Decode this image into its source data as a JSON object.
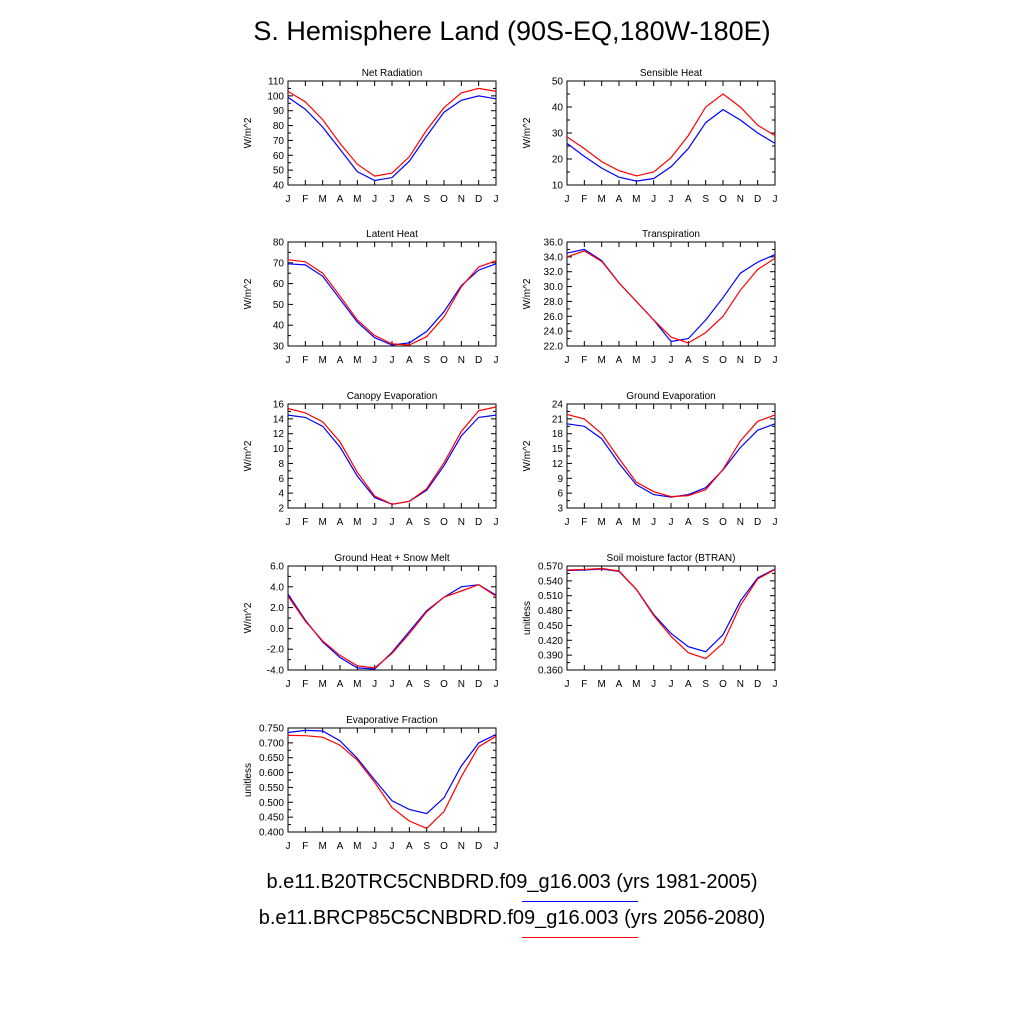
{
  "title": "S. Hemisphere Land (90S-EQ,180W-180E)",
  "legend": {
    "entries": [
      {
        "label": "b.e11.B20TRC5CNBDRD.f09_g16.003 (yrs 1981-2005)",
        "color": "#0000ff"
      },
      {
        "label": "b.e11.BRCP85C5CNBDRD.f09_g16.003 (yrs 2056-2080)",
        "color": "#ff0000"
      }
    ]
  },
  "chart_data": [
    {
      "type": "line",
      "title": "Net Radiation",
      "xlabel": "",
      "ylabel": "W/m^2",
      "categories": [
        "J",
        "F",
        "M",
        "A",
        "M",
        "J",
        "J",
        "A",
        "S",
        "O",
        "N",
        "D",
        "J"
      ],
      "ylim": [
        40,
        110
      ],
      "yticks": [
        "40",
        "50",
        "60",
        "70",
        "80",
        "90",
        "100",
        "110"
      ],
      "series": [
        {
          "color": "#0000ff",
          "values": [
            99,
            91,
            79,
            64,
            49,
            43,
            45,
            56,
            73,
            89,
            97,
            100,
            98
          ]
        },
        {
          "color": "#ff0000",
          "values": [
            103,
            96,
            84,
            68,
            54,
            46,
            48,
            59,
            77,
            92,
            102,
            105,
            103
          ]
        }
      ]
    },
    {
      "type": "line",
      "title": "Sensible Heat",
      "xlabel": "",
      "ylabel": "W/m^2",
      "categories": [
        "J",
        "F",
        "M",
        "A",
        "M",
        "J",
        "J",
        "A",
        "S",
        "O",
        "N",
        "D",
        "J"
      ],
      "ylim": [
        10,
        50
      ],
      "yticks": [
        "10",
        "20",
        "30",
        "40",
        "50"
      ],
      "series": [
        {
          "color": "#0000ff",
          "values": [
            26,
            21,
            16.5,
            13,
            11.5,
            12.5,
            17,
            24,
            34,
            39,
            35,
            30,
            26
          ]
        },
        {
          "color": "#ff0000",
          "values": [
            28.5,
            24,
            19,
            15.5,
            13.5,
            15,
            20.5,
            29,
            40,
            45,
            40,
            33,
            29
          ]
        }
      ]
    },
    {
      "type": "line",
      "title": "Latent Heat",
      "xlabel": "",
      "ylabel": "W/m^2",
      "categories": [
        "J",
        "F",
        "M",
        "A",
        "M",
        "J",
        "J",
        "A",
        "S",
        "O",
        "N",
        "D",
        "J"
      ],
      "ylim": [
        30,
        80
      ],
      "yticks": [
        "30",
        "40",
        "50",
        "60",
        "70",
        "80"
      ],
      "series": [
        {
          "color": "#0000ff",
          "values": [
            69.5,
            69,
            63.5,
            52.5,
            41.5,
            34,
            30.5,
            31.5,
            37,
            46.5,
            59,
            66.5,
            69.5
          ]
        },
        {
          "color": "#ff0000",
          "values": [
            71.5,
            70.5,
            65,
            54,
            42.5,
            35,
            31,
            30.5,
            34.5,
            44,
            58.5,
            68,
            71
          ]
        }
      ]
    },
    {
      "type": "line",
      "title": "Transpiration",
      "xlabel": "",
      "ylabel": "W/m^2",
      "categories": [
        "J",
        "F",
        "M",
        "A",
        "M",
        "J",
        "J",
        "A",
        "S",
        "O",
        "N",
        "D",
        "J"
      ],
      "ylim": [
        22,
        36
      ],
      "yticks": [
        "22.0",
        "24.0",
        "26.0",
        "28.0",
        "30.0",
        "32.0",
        "34.0",
        "36.0"
      ],
      "series": [
        {
          "color": "#0000ff",
          "values": [
            34.5,
            35,
            33.5,
            30.5,
            28,
            25.5,
            22.6,
            23,
            25.5,
            28.5,
            31.8,
            33.3,
            34.3
          ]
        },
        {
          "color": "#ff0000",
          "values": [
            34,
            34.8,
            33.4,
            30.5,
            28,
            25.5,
            23.2,
            22.4,
            23.8,
            26,
            29.5,
            32.3,
            33.8
          ]
        }
      ]
    },
    {
      "type": "line",
      "title": "Canopy Evaporation",
      "xlabel": "",
      "ylabel": "W/m^2",
      "categories": [
        "J",
        "F",
        "M",
        "A",
        "M",
        "J",
        "J",
        "A",
        "S",
        "O",
        "N",
        "D",
        "J"
      ],
      "ylim": [
        2,
        16
      ],
      "yticks": [
        "2",
        "4",
        "6",
        "8",
        "10",
        "12",
        "14",
        "16"
      ],
      "series": [
        {
          "color": "#0000ff",
          "values": [
            14.5,
            14.2,
            13,
            10.2,
            6.3,
            3.4,
            2.5,
            2.9,
            4.4,
            7.7,
            11.7,
            14.2,
            14.5
          ]
        },
        {
          "color": "#ff0000",
          "values": [
            15.4,
            14.8,
            13.6,
            10.9,
            6.8,
            3.6,
            2.5,
            2.9,
            4.6,
            8.1,
            12.3,
            15.1,
            15.6
          ]
        }
      ]
    },
    {
      "type": "line",
      "title": "Ground Evaporation",
      "xlabel": "",
      "ylabel": "W/m^2",
      "categories": [
        "J",
        "F",
        "M",
        "A",
        "M",
        "J",
        "J",
        "A",
        "S",
        "O",
        "N",
        "D",
        "J"
      ],
      "ylim": [
        3,
        24
      ],
      "yticks": [
        "3",
        "6",
        "9",
        "12",
        "15",
        "18",
        "21",
        "24"
      ],
      "series": [
        {
          "color": "#0000ff",
          "values": [
            20,
            19.5,
            17,
            12,
            7.7,
            5.7,
            5.2,
            5.7,
            7.1,
            10.7,
            15.2,
            18.7,
            20
          ]
        },
        {
          "color": "#ff0000",
          "values": [
            21.9,
            21,
            18,
            13,
            8.2,
            6.3,
            5.3,
            5.5,
            6.7,
            10.8,
            16.5,
            20.5,
            21.8
          ]
        }
      ]
    },
    {
      "type": "line",
      "title": "Ground Heat + Snow Melt",
      "xlabel": "",
      "ylabel": "W/m^2",
      "categories": [
        "J",
        "F",
        "M",
        "A",
        "M",
        "J",
        "J",
        "A",
        "S",
        "O",
        "N",
        "D",
        "J"
      ],
      "ylim": [
        -4,
        6
      ],
      "yticks": [
        "-4.0",
        "-2.0",
        "0.0",
        "2.0",
        "4.0",
        "6.0"
      ],
      "series": [
        {
          "color": "#0000ff",
          "values": [
            3.3,
            0.8,
            -1.3,
            -2.8,
            -3.8,
            -3.9,
            -2.3,
            -0.3,
            1.7,
            3,
            4,
            4.2,
            3.2
          ]
        },
        {
          "color": "#ff0000",
          "values": [
            3.1,
            0.7,
            -1.2,
            -2.6,
            -3.6,
            -3.8,
            -2.4,
            -0.5,
            1.6,
            3,
            3.6,
            4.2,
            3.1
          ]
        }
      ]
    },
    {
      "type": "line",
      "title": "Soil moisture factor (BTRAN)",
      "xlabel": "",
      "ylabel": "unitless",
      "categories": [
        "J",
        "F",
        "M",
        "A",
        "M",
        "J",
        "J",
        "A",
        "S",
        "O",
        "N",
        "D",
        "J"
      ],
      "ylim": [
        0.36,
        0.57
      ],
      "yticks": [
        "0.360",
        "0.390",
        "0.420",
        "0.450",
        "0.480",
        "0.510",
        "0.540",
        "0.570"
      ],
      "series": [
        {
          "color": "#0000ff",
          "values": [
            0.561,
            0.562,
            0.564,
            0.559,
            0.523,
            0.472,
            0.434,
            0.407,
            0.397,
            0.431,
            0.499,
            0.546,
            0.564
          ]
        },
        {
          "color": "#ff0000",
          "values": [
            0.562,
            0.563,
            0.565,
            0.56,
            0.523,
            0.47,
            0.428,
            0.395,
            0.383,
            0.414,
            0.49,
            0.544,
            0.563
          ]
        }
      ]
    },
    {
      "type": "line",
      "title": "Evaporative Fraction",
      "xlabel": "",
      "ylabel": "unitless",
      "categories": [
        "J",
        "F",
        "M",
        "A",
        "M",
        "J",
        "J",
        "A",
        "S",
        "O",
        "N",
        "D",
        "J"
      ],
      "ylim": [
        0.4,
        0.75
      ],
      "yticks": [
        "0.400",
        "0.450",
        "0.500",
        "0.550",
        "0.600",
        "0.650",
        "0.700",
        "0.750"
      ],
      "series": [
        {
          "color": "#0000ff",
          "values": [
            0.735,
            0.742,
            0.74,
            0.707,
            0.648,
            0.575,
            0.505,
            0.476,
            0.462,
            0.515,
            0.622,
            0.7,
            0.728
          ]
        },
        {
          "color": "#ff0000",
          "values": [
            0.725,
            0.724,
            0.719,
            0.692,
            0.642,
            0.567,
            0.482,
            0.437,
            0.412,
            0.469,
            0.586,
            0.687,
            0.722
          ]
        }
      ]
    }
  ]
}
